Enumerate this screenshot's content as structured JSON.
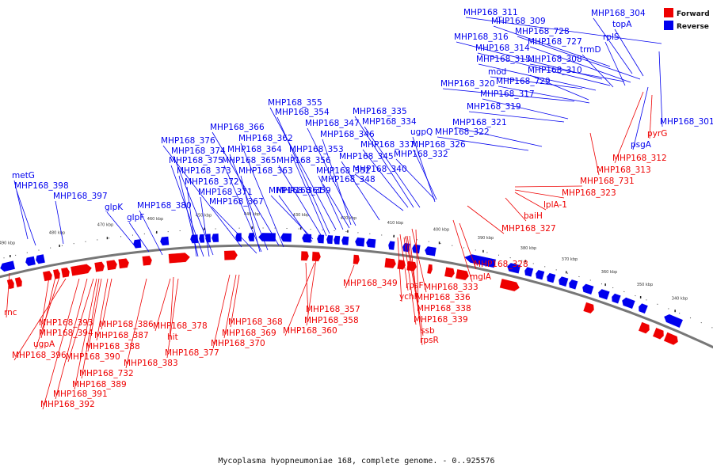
{
  "caption": "Mycoplasma hyopneumoniae 168, complete genome. - 0..925576",
  "legend": [
    {
      "label": "Forward",
      "color": "#ee0000"
    },
    {
      "label": "Reverse",
      "color": "#0000ee"
    }
  ],
  "colors": {
    "forward": "#ee0000",
    "reverse": "#0000ee",
    "backbone": "#777777"
  },
  "scale_marks": [
    "490 kbp",
    "480 kbp",
    "470 kbp",
    "460 kbp",
    "450 kbp",
    "440 kbp",
    "430 kbp",
    "420 kbp",
    "410 kbp",
    "400 kbp",
    "390 kbp",
    "380 kbp",
    "370 kbp",
    "360 kbp",
    "350 kbp",
    "340 kbp"
  ],
  "reverse_labels": [
    "MHP168_311",
    "MHP168_304",
    "MHP168_309",
    "topA",
    "MHP168_728",
    "MHP168_316",
    "MHP168_727",
    "rplS",
    "MHP168_314",
    "trmD",
    "MHP168_315",
    "MHP168_308",
    "mod",
    "MHP168_310",
    "MHP168_320",
    "MHP168_729",
    "MHP168_317",
    "MHP168_319",
    "MHP168_355",
    "MHP168_354",
    "MHP168_335",
    "MHP168_347",
    "MHP168_334",
    "MHP168_321",
    "MHP168_322",
    "MHP168_366",
    "MHP168_346",
    "ugpQ",
    "MHP168_362",
    "MHP168_376",
    "MHP168_337",
    "MHP168_326",
    "MHP168_364",
    "MHP168_353",
    "MHP168_374",
    "MHP168_332",
    "MHP168_345",
    "MHP168_375",
    "MHP168_365",
    "MHP168_356",
    "MHP168_340",
    "MHP168_373",
    "MHP168_363",
    "MHP168_352",
    "metG",
    "MHP168_372",
    "MHP168_361",
    "MHP168_348",
    "MHP168_398",
    "MHP168_371",
    "MHP168_359",
    "MHP168_397",
    "MHP168_367",
    "MHP168_380",
    "glpK",
    "glpF",
    "MHP168_301",
    "psgA"
  ],
  "forward_labels": [
    "pyrG",
    "MHP168_312",
    "MHP168_313",
    "MHP168_731",
    "MHP168_323",
    "lplA-1",
    "baiH",
    "MHP168_327",
    "MHP168_328",
    "mglA",
    "MHP168_349",
    "rpsF",
    "MHP168_333",
    "ychF",
    "MHP168_336",
    "MHP168_338",
    "MHP168_339",
    "ssb",
    "rpsR",
    "MHP168_357",
    "MHP168_358",
    "MHP168_360",
    "MHP168_368",
    "MHP168_369",
    "MHP168_370",
    "rnc",
    "MHP168_393",
    "MHP168_394",
    "ugpA",
    "MHP168_396",
    "MHP168_386",
    "MHP168_378",
    "MHP168_387",
    "hit",
    "MHP168_388",
    "MHP168_377",
    "MHP168_390",
    "MHP168_383",
    "MHP168_732",
    "MHP168_389",
    "MHP168_391",
    "MHP168_392"
  ]
}
